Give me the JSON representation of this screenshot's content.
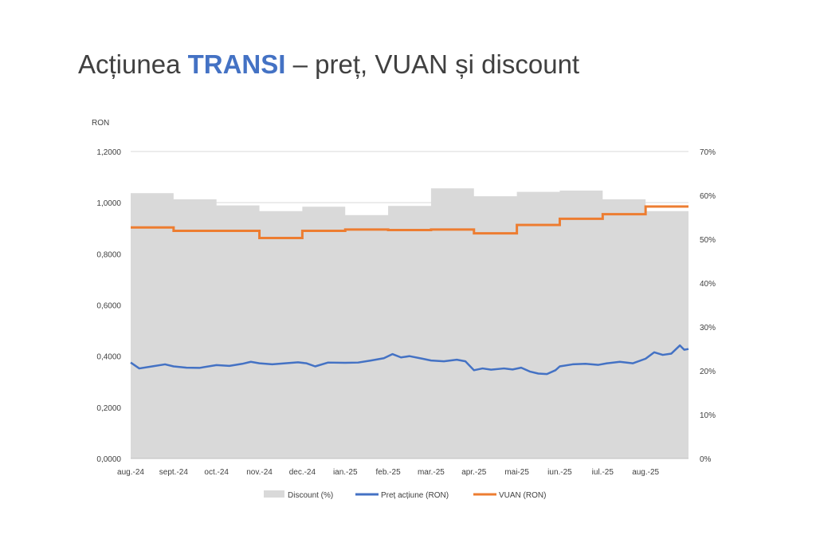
{
  "slide": {
    "title_prefix": "Acțiunea ",
    "title_highlight": "TRANSI",
    "title_suffix": " – preț, VUAN și discount"
  },
  "chart_data": {
    "type": "line",
    "y_left_unit": "RON",
    "y_left_ticks": [
      "0,0000",
      "0,2000",
      "0,4000",
      "0,6000",
      "0,8000",
      "1,0000",
      "1,2000"
    ],
    "y_left_range": [
      0,
      1.2
    ],
    "y_right_ticks": [
      "0%",
      "10%",
      "20%",
      "30%",
      "40%",
      "50%",
      "60%",
      "70%"
    ],
    "y_right_range": [
      0,
      70
    ],
    "x_labels": [
      "aug.-24",
      "sept.-24",
      "oct.-24",
      "nov.-24",
      "dec.-24",
      "ian.-25",
      "feb.-25",
      "mar.-25",
      "apr.-25",
      "mai-25",
      "iun.-25",
      "iul.-25",
      "aug.-25"
    ],
    "x_range": [
      0,
      13
    ],
    "gridlines": true,
    "legend_position": "bottom",
    "colors": {
      "discount": "#d9d9d9",
      "price": "#4472c4",
      "vuan": "#ed7d31"
    },
    "series": [
      {
        "name": "Discount (%)",
        "axis": "right",
        "kind": "area-step",
        "points": [
          [
            0,
            60.5
          ],
          [
            1,
            59.1
          ],
          [
            2,
            57.7
          ],
          [
            3,
            56.4
          ],
          [
            4,
            57.4
          ],
          [
            5,
            55.5
          ],
          [
            6,
            57.6
          ],
          [
            7,
            61.6
          ],
          [
            8,
            59.8
          ],
          [
            9,
            60.8
          ],
          [
            10,
            61.1
          ],
          [
            11,
            59.1
          ],
          [
            12,
            56.4
          ]
        ]
      },
      {
        "name": "Preț acțiune (RON)",
        "axis": "left",
        "kind": "line",
        "points": [
          [
            0,
            0.375
          ],
          [
            0.2,
            0.352
          ],
          [
            0.5,
            0.36
          ],
          [
            0.8,
            0.368
          ],
          [
            1.0,
            0.36
          ],
          [
            1.3,
            0.355
          ],
          [
            1.6,
            0.354
          ],
          [
            2.0,
            0.365
          ],
          [
            2.3,
            0.362
          ],
          [
            2.6,
            0.37
          ],
          [
            2.8,
            0.378
          ],
          [
            3.0,
            0.372
          ],
          [
            3.3,
            0.368
          ],
          [
            3.6,
            0.372
          ],
          [
            3.9,
            0.376
          ],
          [
            4.1,
            0.372
          ],
          [
            4.3,
            0.36
          ],
          [
            4.6,
            0.375
          ],
          [
            5.0,
            0.374
          ],
          [
            5.3,
            0.375
          ],
          [
            5.6,
            0.383
          ],
          [
            5.9,
            0.392
          ],
          [
            6.1,
            0.408
          ],
          [
            6.3,
            0.395
          ],
          [
            6.5,
            0.4
          ],
          [
            6.8,
            0.39
          ],
          [
            7.0,
            0.383
          ],
          [
            7.3,
            0.38
          ],
          [
            7.6,
            0.386
          ],
          [
            7.8,
            0.38
          ],
          [
            8.0,
            0.345
          ],
          [
            8.2,
            0.352
          ],
          [
            8.4,
            0.347
          ],
          [
            8.7,
            0.352
          ],
          [
            8.9,
            0.348
          ],
          [
            9.1,
            0.355
          ],
          [
            9.3,
            0.34
          ],
          [
            9.5,
            0.332
          ],
          [
            9.7,
            0.33
          ],
          [
            9.9,
            0.345
          ],
          [
            10.0,
            0.36
          ],
          [
            10.3,
            0.368
          ],
          [
            10.6,
            0.37
          ],
          [
            10.9,
            0.366
          ],
          [
            11.1,
            0.372
          ],
          [
            11.4,
            0.378
          ],
          [
            11.7,
            0.372
          ],
          [
            12.0,
            0.39
          ],
          [
            12.2,
            0.415
          ],
          [
            12.4,
            0.405
          ],
          [
            12.6,
            0.41
          ],
          [
            12.8,
            0.442
          ],
          [
            12.9,
            0.425
          ],
          [
            13.0,
            0.428
          ]
        ]
      },
      {
        "name": "VUAN (RON)",
        "axis": "left",
        "kind": "step",
        "points": [
          [
            0,
            0.903
          ],
          [
            1,
            0.89
          ],
          [
            2,
            0.89
          ],
          [
            3,
            0.862
          ],
          [
            4,
            0.89
          ],
          [
            5,
            0.895
          ],
          [
            6,
            0.893
          ],
          [
            7,
            0.895
          ],
          [
            8,
            0.88
          ],
          [
            9,
            0.913
          ],
          [
            10,
            0.937
          ],
          [
            11,
            0.955
          ],
          [
            12,
            0.985
          ],
          [
            13,
            0.985
          ]
        ]
      }
    ]
  }
}
